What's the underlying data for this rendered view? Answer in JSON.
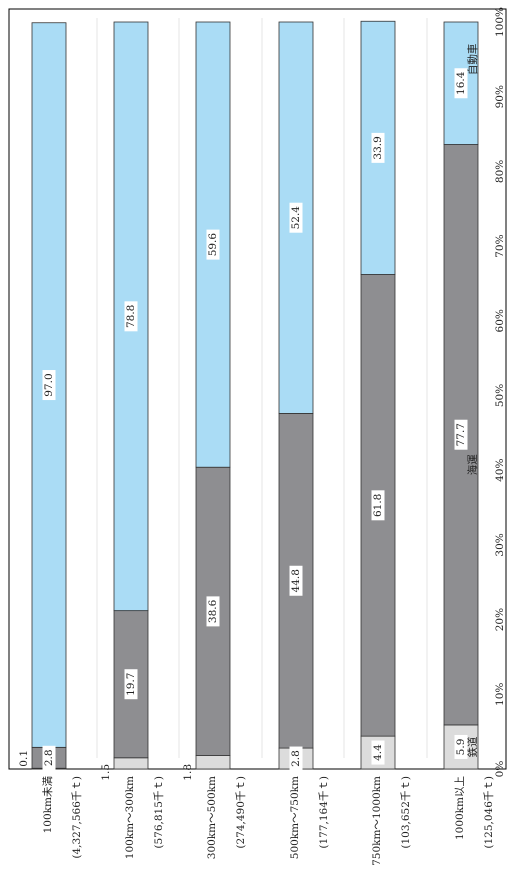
{
  "chart_data": {
    "type": "bar",
    "stacked": true,
    "normalized": true,
    "orientation": "horizontal",
    "categories": [
      "100km未満",
      "100km～300km",
      "300km～500km",
      "500km～750km",
      "750km～1000km",
      "1000km以上"
    ],
    "category_totals": [
      "(4,327,566千ｔ)",
      "(576,815千ｔ)",
      "(274,490千ｔ)",
      "(177,164千ｔ)",
      "(103,652千ｔ)",
      "(125,046千ｔ)"
    ],
    "series": [
      {
        "name": "鉄道",
        "values": [
          0.1,
          1.5,
          1.8,
          2.8,
          4.4,
          5.9
        ],
        "color": "#dcdcdc"
      },
      {
        "name": "海運",
        "values": [
          2.8,
          19.7,
          38.6,
          44.8,
          61.8,
          77.7
        ],
        "color": "#8e8e91"
      },
      {
        "name": "自動車",
        "values": [
          97.0,
          78.8,
          59.6,
          52.4,
          33.9,
          16.4
        ],
        "color": "#aadcf5"
      }
    ],
    "value_axis": {
      "range": [
        0,
        100
      ],
      "tick_labels": [
        "0%",
        "10%",
        "20%",
        "30%",
        "40%",
        "50%",
        "60%",
        "70%",
        "80%",
        "90%",
        "100%"
      ]
    },
    "grid": false,
    "series_labels_inside_last_bar": true
  }
}
